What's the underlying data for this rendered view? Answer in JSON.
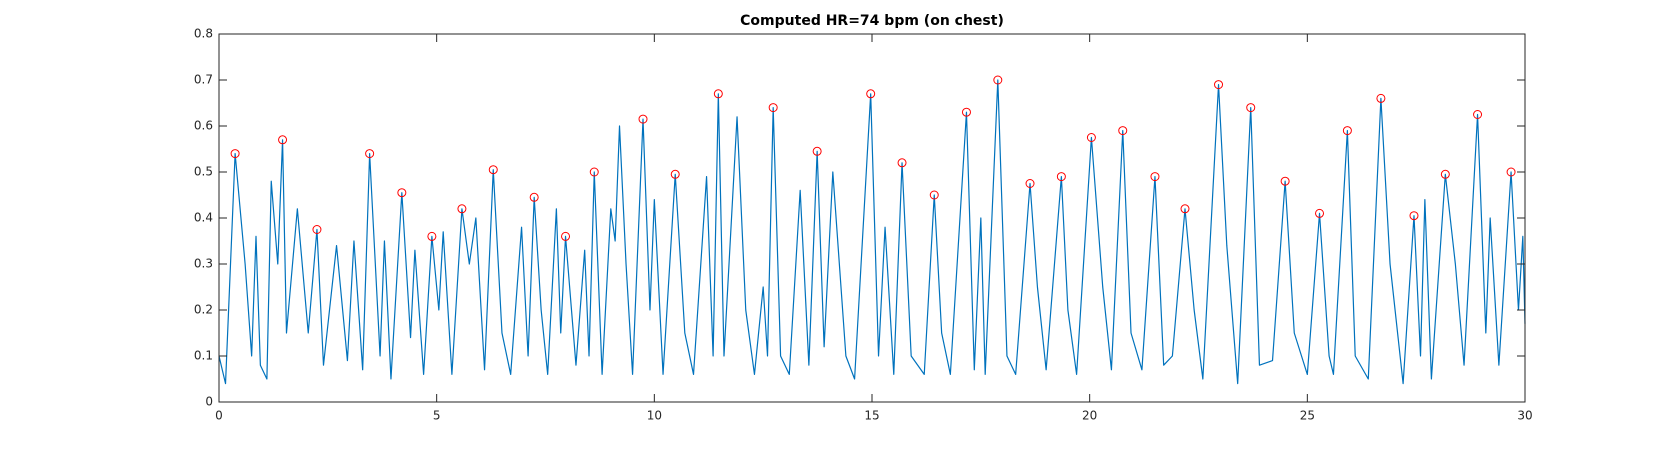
{
  "chart_data": {
    "type": "line",
    "title": "Computed HR=74 bpm (on chest)",
    "xlim": [
      0,
      30
    ],
    "ylim": [
      0,
      0.8
    ],
    "xticks": [
      0,
      5,
      10,
      15,
      20,
      25,
      30
    ],
    "yticks": [
      0,
      0.1,
      0.2,
      0.3,
      0.4,
      0.5,
      0.6,
      0.7,
      0.8
    ],
    "box": true,
    "series": [
      {
        "type": "line",
        "color": "#0072bd",
        "x": [
          0,
          0.15,
          0.37,
          0.6,
          0.75,
          0.85,
          0.95,
          1.1,
          1.2,
          1.35,
          1.46,
          1.55,
          1.8,
          2.05,
          2.25,
          2.4,
          2.7,
          2.95,
          3.1,
          3.3,
          3.46,
          3.7,
          3.8,
          3.95,
          4.2,
          4.4,
          4.5,
          4.7,
          4.89,
          5.05,
          5.15,
          5.35,
          5.58,
          5.75,
          5.9,
          6.1,
          6.3,
          6.5,
          6.7,
          6.95,
          7.1,
          7.24,
          7.4,
          7.55,
          7.75,
          7.85,
          7.96,
          8.2,
          8.4,
          8.5,
          8.62,
          8.8,
          9.0,
          9.1,
          9.2,
          9.35,
          9.5,
          9.74,
          9.9,
          10.0,
          10.2,
          10.48,
          10.7,
          10.9,
          11.2,
          11.35,
          11.47,
          11.6,
          11.9,
          12.1,
          12.3,
          12.5,
          12.6,
          12.73,
          12.9,
          13.1,
          13.35,
          13.55,
          13.74,
          13.9,
          14.1,
          14.4,
          14.6,
          14.97,
          15.15,
          15.3,
          15.5,
          15.69,
          15.9,
          16.2,
          16.43,
          16.6,
          16.8,
          17.17,
          17.35,
          17.5,
          17.6,
          17.89,
          18.1,
          18.3,
          18.63,
          18.8,
          19.0,
          19.35,
          19.5,
          19.7,
          20.04,
          20.3,
          20.5,
          20.76,
          20.95,
          21.2,
          21.5,
          21.7,
          21.9,
          22.19,
          22.4,
          22.6,
          22.96,
          23.15,
          23.4,
          23.7,
          23.9,
          24.2,
          24.49,
          24.7,
          25.0,
          25.28,
          25.5,
          25.6,
          25.92,
          26.1,
          26.4,
          26.69,
          26.9,
          27.2,
          27.45,
          27.6,
          27.7,
          27.85,
          28.17,
          28.4,
          28.6,
          28.91,
          29.1,
          29.2,
          29.4,
          29.68,
          29.85,
          29.95,
          30
        ],
        "values": [
          0.1,
          0.04,
          0.54,
          0.3,
          0.1,
          0.36,
          0.08,
          0.05,
          0.48,
          0.3,
          0.57,
          0.15,
          0.42,
          0.15,
          0.375,
          0.08,
          0.34,
          0.09,
          0.35,
          0.07,
          0.54,
          0.1,
          0.35,
          0.05,
          0.455,
          0.14,
          0.33,
          0.06,
          0.36,
          0.2,
          0.37,
          0.06,
          0.42,
          0.3,
          0.4,
          0.07,
          0.505,
          0.15,
          0.06,
          0.38,
          0.1,
          0.445,
          0.2,
          0.06,
          0.42,
          0.15,
          0.36,
          0.08,
          0.33,
          0.1,
          0.5,
          0.06,
          0.42,
          0.35,
          0.6,
          0.3,
          0.06,
          0.615,
          0.2,
          0.44,
          0.06,
          0.495,
          0.15,
          0.06,
          0.49,
          0.1,
          0.67,
          0.1,
          0.62,
          0.2,
          0.06,
          0.25,
          0.1,
          0.64,
          0.1,
          0.06,
          0.46,
          0.08,
          0.545,
          0.12,
          0.5,
          0.1,
          0.05,
          0.67,
          0.1,
          0.38,
          0.06,
          0.52,
          0.1,
          0.06,
          0.45,
          0.15,
          0.06,
          0.63,
          0.07,
          0.4,
          0.06,
          0.7,
          0.1,
          0.06,
          0.475,
          0.25,
          0.07,
          0.49,
          0.2,
          0.06,
          0.575,
          0.25,
          0.07,
          0.59,
          0.15,
          0.07,
          0.49,
          0.08,
          0.1,
          0.42,
          0.2,
          0.05,
          0.69,
          0.34,
          0.04,
          0.64,
          0.08,
          0.09,
          0.48,
          0.15,
          0.06,
          0.41,
          0.1,
          0.06,
          0.59,
          0.1,
          0.05,
          0.66,
          0.3,
          0.04,
          0.405,
          0.1,
          0.44,
          0.05,
          0.495,
          0.3,
          0.08,
          0.625,
          0.15,
          0.4,
          0.08,
          0.5,
          0.2,
          0.36,
          0.17
        ]
      },
      {
        "type": "scatter",
        "color": "#ff0000",
        "marker": "circle",
        "x": [
          0.37,
          1.46,
          2.25,
          3.46,
          4.2,
          4.89,
          5.58,
          6.3,
          7.24,
          7.96,
          8.62,
          9.74,
          10.48,
          11.47,
          12.73,
          13.74,
          14.97,
          15.69,
          16.43,
          17.17,
          17.89,
          18.63,
          19.35,
          20.04,
          20.76,
          21.5,
          22.19,
          22.96,
          23.7,
          24.49,
          25.28,
          25.92,
          26.69,
          27.45,
          28.17,
          28.91,
          29.68
        ],
        "values": [
          0.54,
          0.57,
          0.375,
          0.54,
          0.455,
          0.36,
          0.42,
          0.505,
          0.445,
          0.36,
          0.5,
          0.615,
          0.495,
          0.67,
          0.64,
          0.545,
          0.67,
          0.52,
          0.45,
          0.63,
          0.7,
          0.475,
          0.49,
          0.575,
          0.59,
          0.49,
          0.42,
          0.69,
          0.64,
          0.48,
          0.41,
          0.59,
          0.66,
          0.405,
          0.495,
          0.625,
          0.5
        ]
      }
    ]
  }
}
